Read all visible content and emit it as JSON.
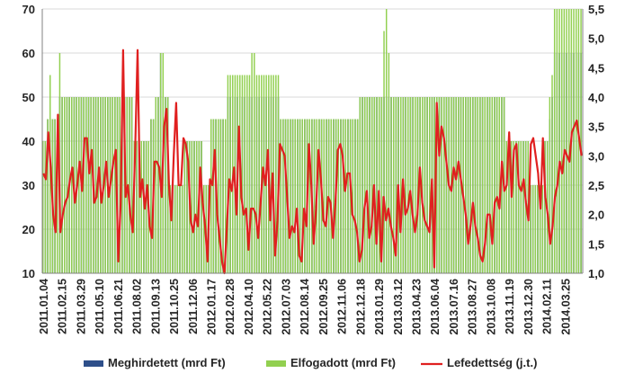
{
  "chart_data": {
    "type": "bar",
    "y_left": {
      "min": 10,
      "max": 70,
      "ticks": [
        10,
        20,
        30,
        40,
        50,
        60,
        70
      ]
    },
    "y_right": {
      "min": 1.0,
      "max": 5.5,
      "ticks": [
        "1,0",
        "1,5",
        "2,0",
        "2,5",
        "3,0",
        "3,5",
        "4,0",
        "4,5",
        "5,0",
        "5,5"
      ]
    },
    "x_tick_labels": [
      "2011.01.04",
      "2011.02.15",
      "2011.03.29",
      "2011.05.10",
      "2011.06.21",
      "2011.08.02",
      "2011.09.13",
      "2011.10.25",
      "2011.12.06",
      "2012.01.17",
      "2012.02.28",
      "2012.04.10",
      "2012.05.22",
      "2012.07.03",
      "2012.08.14",
      "2012.09.25",
      "2012.11.06",
      "2012.12.18",
      "2013.01.29",
      "2013.03.12",
      "2013.04.23",
      "2013.06.04",
      "2013.07.16",
      "2013.08.27",
      "2013.10.08",
      "2013.11.19",
      "2013.12.30",
      "2014.02.11",
      "2014.03.25"
    ],
    "legend": [
      {
        "name": "Meghirdetett (mrd Ft)",
        "color": "#2e4f8a",
        "kind": "bar"
      },
      {
        "name": "Elfogadott (mrd Ft)",
        "color": "#92d050",
        "kind": "bar"
      },
      {
        "name": "Lefedettség (j.t.)",
        "color": "#e02020",
        "kind": "line"
      }
    ],
    "grid": true,
    "legend_position": "bottom",
    "series": [
      {
        "name": "Meghirdetett (mrd Ft)",
        "axis": "left",
        "values": [
          40,
          40,
          45,
          45,
          45,
          45,
          45,
          50,
          50,
          50,
          50,
          50,
          50,
          50,
          50,
          50,
          50,
          50,
          50,
          50,
          50,
          50,
          50,
          50,
          50,
          50,
          50,
          50,
          50,
          50,
          50,
          50,
          50,
          50,
          50,
          50,
          50,
          50,
          40,
          40,
          40,
          40,
          40,
          40,
          40,
          45,
          45,
          50,
          50,
          60,
          50,
          50,
          50,
          30,
          30,
          30,
          30,
          30,
          30,
          40,
          40,
          40,
          40,
          40,
          40,
          40,
          40,
          30,
          30,
          30,
          45,
          45,
          45,
          45,
          45,
          45,
          45,
          50,
          50,
          50,
          50,
          50,
          50,
          50,
          50,
          50,
          50,
          50,
          50,
          50,
          50,
          50,
          50,
          50,
          50,
          50,
          50,
          50,
          50,
          45,
          45,
          45,
          45,
          45,
          45,
          45,
          45,
          45,
          45,
          45,
          45,
          45,
          45,
          45,
          45,
          45,
          45,
          45,
          45,
          45,
          45,
          45,
          45,
          45,
          45,
          45,
          45,
          45,
          45,
          45,
          45,
          45,
          50,
          50,
          50,
          50,
          50,
          50,
          50,
          50,
          50,
          50,
          50,
          50,
          50,
          50,
          50,
          50,
          50,
          50,
          50,
          50,
          50,
          50,
          50,
          50,
          50,
          50,
          50,
          50,
          50,
          50,
          50,
          50,
          50,
          50,
          50,
          50,
          50,
          50,
          50,
          50,
          50,
          50,
          50,
          50,
          50,
          50,
          50,
          50,
          50,
          50,
          50,
          50,
          50,
          50,
          50,
          50,
          50,
          50,
          50,
          50,
          50,
          40,
          40,
          40,
          40,
          40,
          40,
          40,
          40,
          40,
          40,
          30,
          30,
          30,
          30,
          30,
          30,
          40,
          40,
          45,
          50,
          60,
          60,
          60,
          60,
          60,
          60,
          60,
          60,
          60,
          60,
          60,
          60
        ]
      },
      {
        "name": "Elfogadott (mrd Ft)",
        "axis": "left",
        "values": [
          40,
          40,
          45,
          55,
          45,
          45,
          45,
          60,
          50,
          50,
          50,
          50,
          50,
          50,
          50,
          50,
          50,
          50,
          50,
          50,
          50,
          50,
          50,
          50,
          50,
          50,
          50,
          50,
          50,
          50,
          50,
          50,
          50,
          50,
          50,
          50,
          50,
          50,
          40,
          40,
          40,
          40,
          40,
          40,
          40,
          45,
          45,
          50,
          50,
          60,
          60,
          50,
          50,
          30,
          30,
          30,
          30,
          30,
          30,
          40,
          40,
          40,
          40,
          40,
          40,
          40,
          40,
          30,
          30,
          30,
          45,
          45,
          45,
          45,
          45,
          45,
          45,
          55,
          55,
          55,
          55,
          55,
          55,
          55,
          55,
          55,
          55,
          60,
          60,
          55,
          55,
          55,
          55,
          55,
          55,
          55,
          55,
          55,
          55,
          45,
          45,
          45,
          45,
          45,
          45,
          45,
          45,
          45,
          45,
          45,
          45,
          45,
          45,
          45,
          45,
          45,
          45,
          45,
          45,
          45,
          45,
          45,
          45,
          45,
          45,
          45,
          45,
          45,
          45,
          45,
          45,
          45,
          50,
          50,
          50,
          50,
          50,
          50,
          50,
          50,
          50,
          50,
          65,
          70,
          60,
          50,
          50,
          50,
          50,
          50,
          50,
          50,
          50,
          50,
          50,
          50,
          50,
          50,
          50,
          50,
          50,
          50,
          50,
          50,
          50,
          50,
          50,
          50,
          50,
          50,
          50,
          50,
          50,
          50,
          50,
          50,
          50,
          50,
          50,
          50,
          50,
          50,
          50,
          50,
          50,
          50,
          50,
          50,
          50,
          50,
          50,
          50,
          50,
          40,
          40,
          40,
          40,
          40,
          40,
          40,
          40,
          40,
          40,
          30,
          30,
          30,
          30,
          30,
          30,
          40,
          40,
          50,
          55,
          70,
          70,
          70,
          70,
          70,
          70,
          70,
          70,
          70,
          70,
          70,
          70
        ]
      },
      {
        "name": "Lefedettség (j.t.)",
        "axis": "right",
        "values": [
          2.7,
          2.6,
          3.4,
          2.8,
          2.0,
          1.7,
          3.7,
          1.7,
          2.0,
          2.2,
          2.3,
          2.6,
          2.8,
          2.2,
          2.5,
          2.9,
          2.4,
          3.3,
          3.3,
          2.7,
          3.1,
          2.2,
          2.3,
          2.8,
          2.2,
          2.5,
          2.9,
          2.3,
          2.6,
          2.9,
          3.1,
          1.2,
          2.2,
          4.8,
          2.3,
          2.5,
          2.0,
          1.7,
          3.1,
          4.8,
          2.3,
          2.6,
          2.1,
          2.5,
          1.8,
          1.6,
          2.9,
          2.9,
          2.8,
          2.3,
          3.5,
          3.8,
          2.5,
          1.9,
          3.0,
          3.9,
          2.5,
          2.5,
          3.3,
          3.2,
          2.9,
          1.9,
          1.7,
          2.0,
          1.8,
          2.8,
          2.2,
          1.8,
          1.2,
          2.6,
          2.5,
          3.1,
          2.0,
          1.6,
          1.2,
          1.0,
          1.8,
          2.6,
          2.4,
          2.8,
          2.0,
          3.5,
          2.3,
          2.0,
          2.1,
          1.4,
          2.1,
          2.1,
          2.0,
          1.6,
          2.2,
          2.8,
          2.5,
          3.1,
          1.9,
          2.7,
          1.3,
          1.9,
          3.2,
          3.1,
          3.0,
          2.3,
          1.6,
          1.8,
          1.7,
          2.1,
          1.3,
          1.2,
          2.1,
          1.8,
          3.2,
          2.5,
          1.5,
          2.1,
          3.1,
          2.6,
          1.9,
          1.8,
          2.3,
          2.2,
          1.6,
          2.2,
          3.1,
          3.2,
          3.0,
          2.4,
          2.7,
          2.7,
          2.0,
          1.9,
          1.7,
          1.2,
          1.4,
          2.1,
          2.4,
          1.6,
          1.8,
          2.5,
          1.5,
          2.4,
          1.2,
          2.3,
          1.9,
          2.1,
          1.8,
          1.6,
          1.3,
          2.5,
          1.7,
          2.6,
          2.0,
          2.1,
          2.4,
          2.0,
          1.7,
          2.0,
          2.8,
          2.2,
          1.9,
          1.8,
          1.7,
          2.6,
          1.1,
          3.9,
          3.0,
          3.5,
          3.3,
          2.9,
          2.5,
          2.4,
          2.8,
          2.6,
          2.9,
          2.6,
          2.3,
          2.0,
          1.5,
          1.8,
          2.2,
          1.8,
          1.6,
          1.3,
          1.2,
          1.5,
          2.0,
          2.0,
          1.5,
          2.2,
          2.3,
          2.1,
          2.9,
          2.4,
          2.5,
          3.4,
          2.3,
          3.1,
          3.2,
          2.5,
          2.4,
          2.6,
          2.2,
          1.9,
          3.2,
          3.3,
          3.0,
          2.7,
          2.1,
          3.3,
          2.3,
          2.0,
          1.5,
          1.8,
          2.3,
          2.5,
          2.9,
          2.7,
          3.1,
          3.0,
          2.9,
          3.4,
          3.5,
          3.6,
          3.3,
          3.0
        ]
      }
    ]
  }
}
